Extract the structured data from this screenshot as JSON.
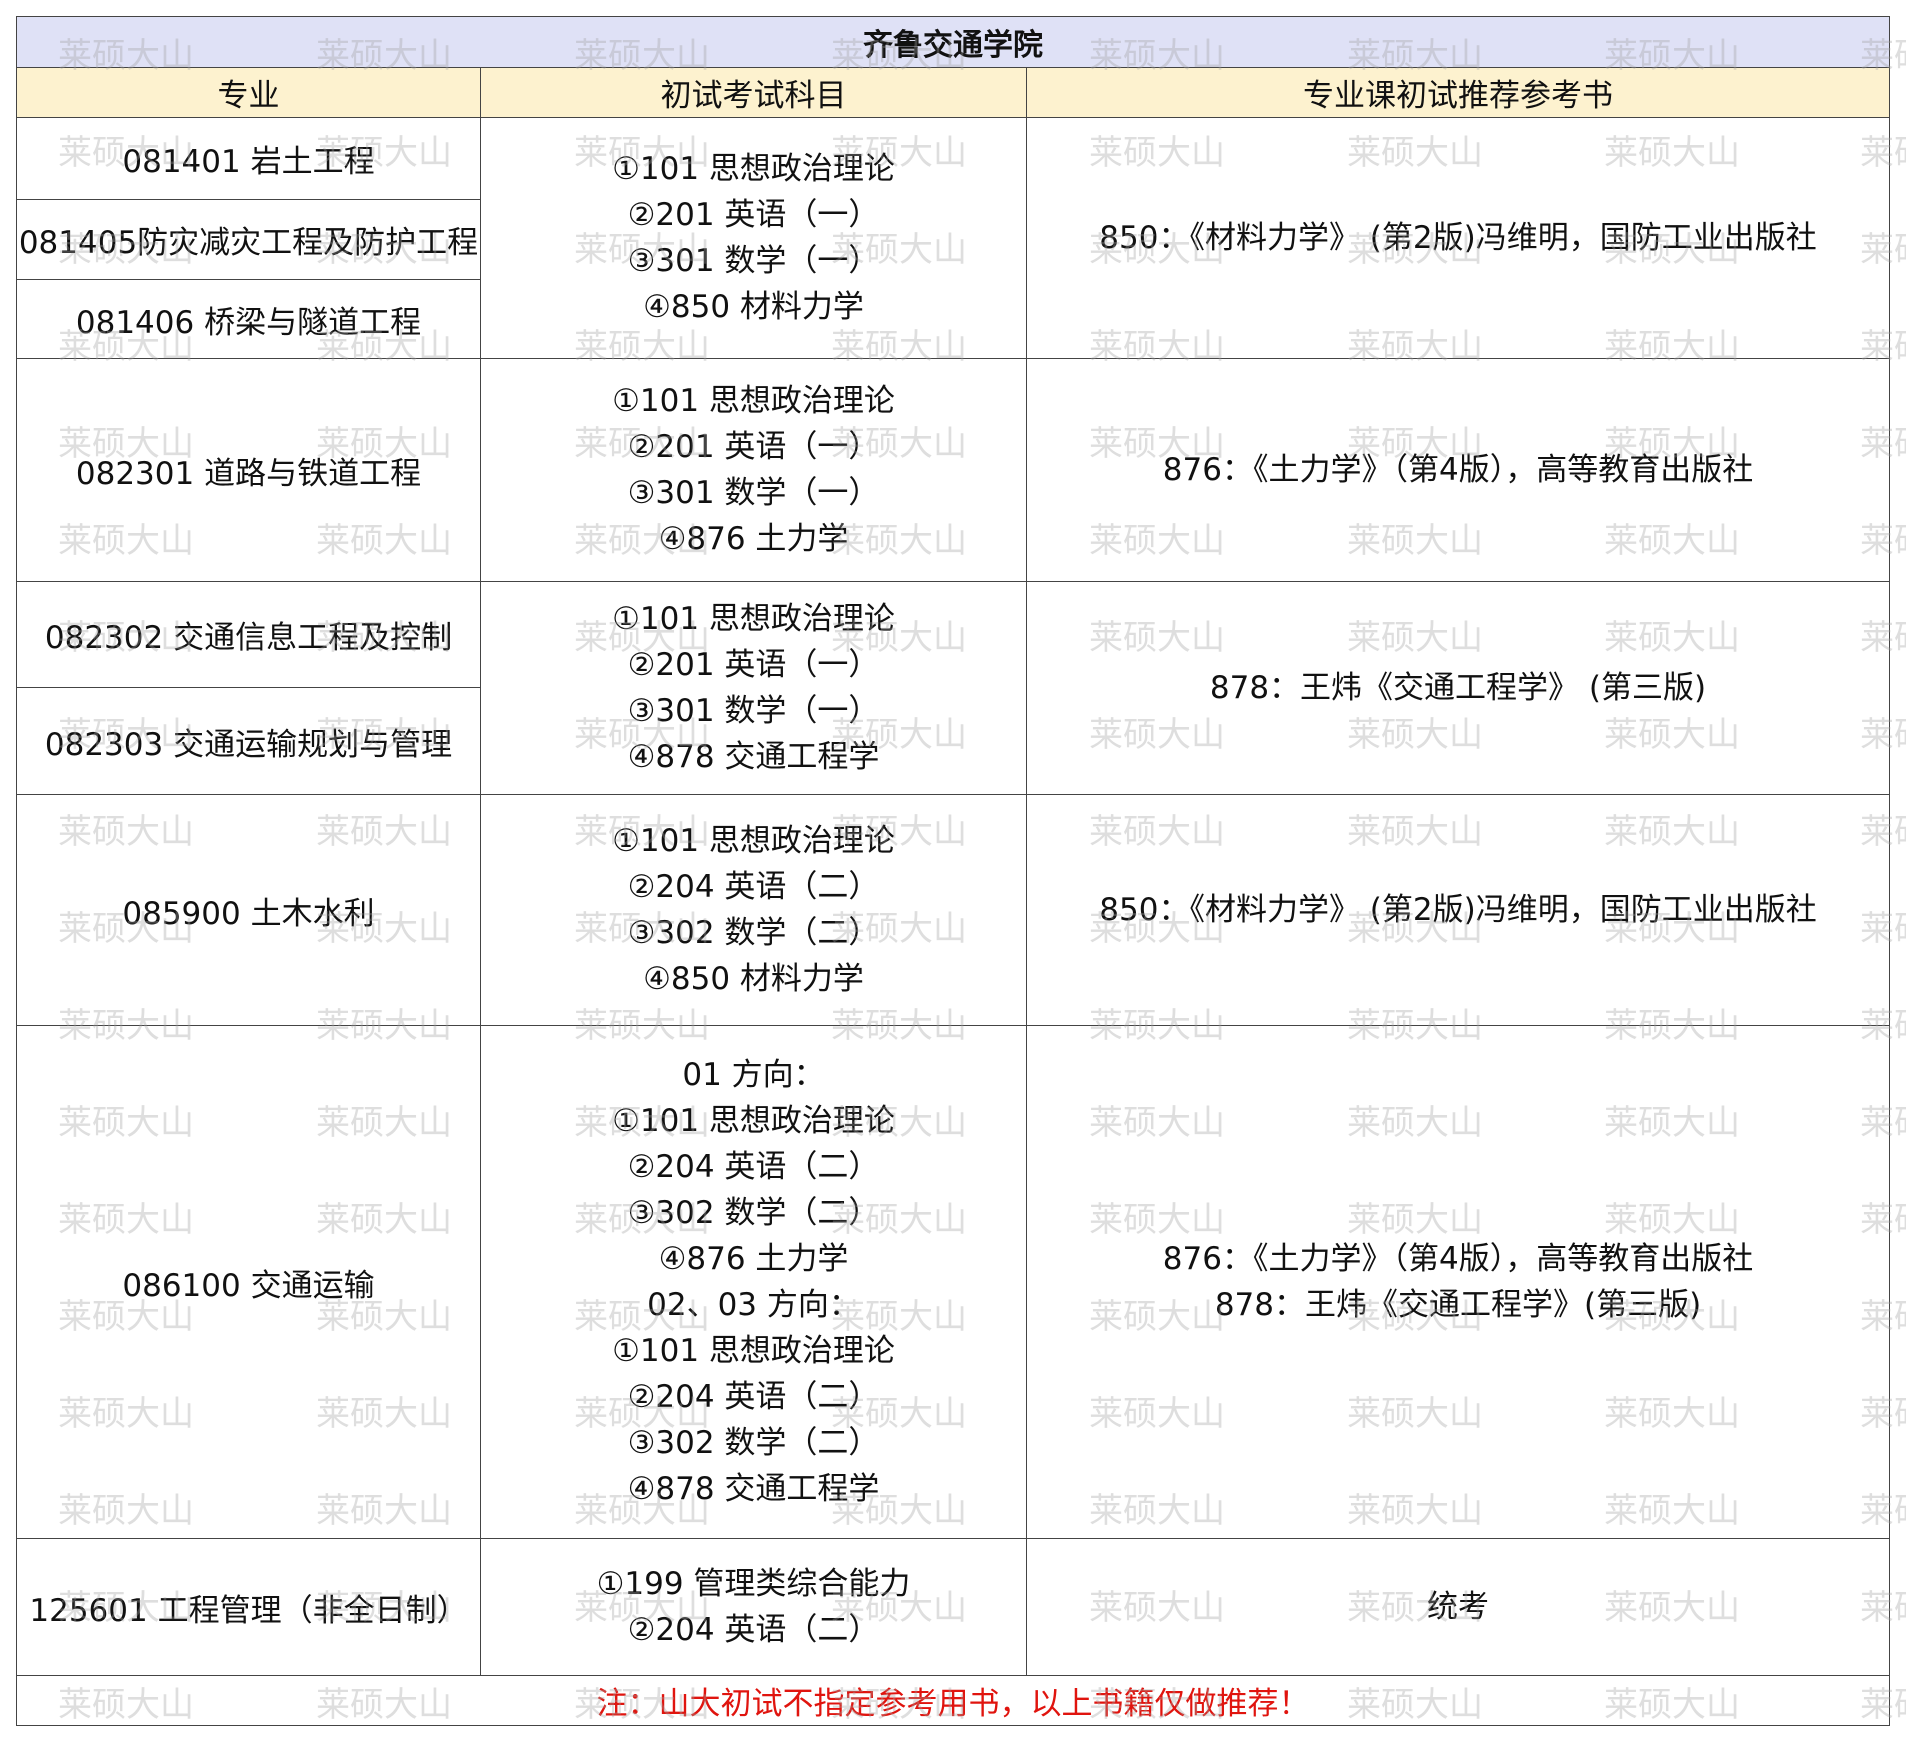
{
  "title": "齐鲁交通学院",
  "watermark": "莱硕大山",
  "table": {
    "header": [
      "专业",
      "初试考试科目",
      "专业课初试推荐参考书"
    ],
    "groups": [
      {
        "majors": [
          "081401 岩土工程",
          "081405防灾减灾工程及防护工程",
          "081406 桥梁与隧道工程"
        ],
        "subjects": [
          "①101 思想政治理论",
          "②201 英语（一）",
          "③301 数学（一）",
          "④850 材料力学"
        ],
        "books": [
          "850：《材料力学》 (第2版)冯维明，国防工业出版社"
        ]
      },
      {
        "majors": [
          "082301 道路与铁道工程"
        ],
        "subjects": [
          "①101 思想政治理论",
          "②201 英语（一）",
          "③301 数学（一）",
          "④876 土力学"
        ],
        "books": [
          "876：《土力学》（第4版），高等教育出版社"
        ]
      },
      {
        "majors": [
          "082302 交通信息工程及控制",
          "082303 交通运输规划与管理"
        ],
        "subjects": [
          "①101 思想政治理论",
          "②201 英语（一）",
          "③301 数学（一）",
          "④878 交通工程学"
        ],
        "books": [
          "878：王炜《交通工程学》 (第三版)"
        ]
      },
      {
        "majors": [
          "085900 土木水利"
        ],
        "subjects": [
          "①101 思想政治理论",
          "②204 英语（二）",
          "③302 数学（二）",
          "④850 材料力学"
        ],
        "books": [
          "850：《材料力学》 (第2版)冯维明，国防工业出版社"
        ]
      },
      {
        "majors": [
          "086100 交通运输"
        ],
        "subjects": [
          "01 方向：",
          "①101 思想政治理论",
          "②204 英语（二）",
          "③302 数学（二）",
          "④876 土力学",
          "02、03 方向：",
          "①101 思想政治理论",
          "②204 英语（二）",
          "③302 数学（二）",
          "④878 交通工程学"
        ],
        "books": [
          "876：《土力学》（第4版），高等教育出版社",
          "878：王炜《交通工程学》(第三版)"
        ]
      },
      {
        "majors": [
          "125601 工程管理（非全日制）"
        ],
        "subjects": [
          "①199 管理类综合能力",
          "②204 英语（二）"
        ],
        "books": [
          "统考"
        ]
      }
    ]
  },
  "note": "注：山大初试不指定参考用书，以上书籍仅做推荐！"
}
